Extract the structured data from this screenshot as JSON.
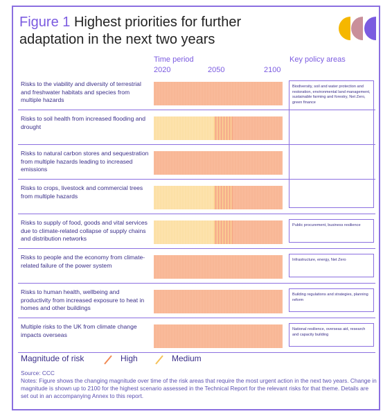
{
  "figure": {
    "title_prefix": "Figure 1",
    "title_rest": "Highest priorities for further adaptation in the next two years"
  },
  "header": {
    "time_period": "Time period",
    "years": [
      "2020",
      "2050",
      "2100"
    ],
    "policy_areas": "Key policy areas"
  },
  "colors": {
    "high": "#f9ba9a",
    "high_stripe": "#f6a882",
    "medium": "#fde2ac",
    "medium_stripe": "#fbd48a",
    "accent": "#8b6fe0",
    "logo": [
      "#f5b700",
      "#c98f9a",
      "#7b5be0"
    ]
  },
  "risks": [
    {
      "text": "Risks to the viability and diversity of terrestrial and freshwater habitats and species from multiple hazards",
      "medium_until": 0
    },
    {
      "text": "Risks to soil health from increased flooding and drought",
      "medium_until": 0.47
    },
    {
      "text": "Risks to natural carbon stores and sequestration from multiple hazards leading to increased emissions",
      "medium_until": 0
    },
    {
      "text": "Risks to crops, livestock and commercial trees from multiple hazards",
      "medium_until": 0.47
    },
    {
      "text": "Risks to supply of food, goods and vital services due to climate-related collapse of supply chains and distribution networks",
      "medium_until": 0.47
    },
    {
      "text": "Risks to people and the economy from climate-related failure of the power system",
      "medium_until": 0
    },
    {
      "text": "Risks to human health, wellbeing and productivity from increased exposure to heat in homes and other buildings",
      "medium_until": 0
    },
    {
      "text": "Multiple risks to the UK from climate change impacts overseas",
      "medium_until": 0
    }
  ],
  "policies": [
    {
      "text": "Biodiversity, soil and water protection and restoration, environmental land management, sustainable farming and forestry, Net Zero, green finance"
    },
    {
      "text": "Public procurement, business resilience"
    },
    {
      "text": "Infrastructure, energy, Net Zero"
    },
    {
      "text": "Building regulations and strategies, planning reform"
    },
    {
      "text": "National resilience, overseas aid, research and capacity building"
    }
  ],
  "legend": {
    "title": "Magnitude of risk",
    "high": "High",
    "medium": "Medium"
  },
  "source": "Source: CCC",
  "notes": "Notes: Figure shows the changing magnitude over time of the risk areas that require the most urgent action in the next two years. Change in magnitude is shown up to 2100 for the highest scenario assessed in the Technical Report for the relevant risks for that theme. Details are set out in an accompanying Annex to this report."
}
